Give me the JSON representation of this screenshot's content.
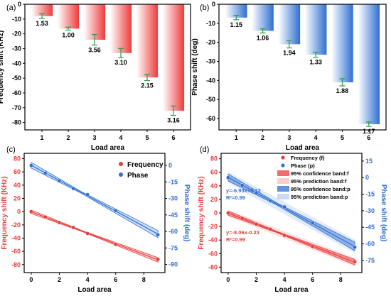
{
  "panels": {
    "a": "(a)",
    "b": "(b)",
    "c": "(c)",
    "d": "(d)"
  },
  "colors": {
    "red": "#e83b3b",
    "blue": "#2f6fd1",
    "green": "#2a9d4a"
  },
  "chart_data": [
    {
      "id": "a",
      "type": "bar",
      "title": "",
      "xlabel": "Load area",
      "ylabel": "Frequency shift (KHz)",
      "categories": [
        "1",
        "2",
        "3",
        "4",
        "5",
        "6"
      ],
      "values": [
        -8,
        -16.5,
        -24,
        -33,
        -49.5,
        -72
      ],
      "errors": [
        1.53,
        1.0,
        3.56,
        3.1,
        2.15,
        3.16
      ],
      "data_labels": [
        "1.53",
        "1.00",
        "3.56",
        "3.10",
        "2.15",
        "3.16"
      ],
      "yticks": [
        0,
        -10,
        -20,
        -30,
        -40,
        -50,
        -60,
        -70,
        -80
      ],
      "ylim": [
        -85,
        0
      ]
    },
    {
      "id": "b",
      "type": "bar",
      "title": "",
      "xlabel": "Load area",
      "ylabel": "Phase shift (deg)",
      "categories": [
        "1",
        "2",
        "3",
        "4",
        "5",
        "6"
      ],
      "values": [
        -7,
        -14,
        -21,
        -26.5,
        -41,
        -63
      ],
      "errors": [
        1.15,
        1.06,
        1.94,
        1.33,
        1.88,
        1.17
      ],
      "data_labels": [
        "1.15",
        "1.06",
        "1.94",
        "1.33",
        "1.88",
        "1.17"
      ],
      "yticks": [
        0,
        -10,
        -20,
        -30,
        -40,
        -50,
        -60
      ],
      "ylim": [
        -66,
        0
      ]
    },
    {
      "id": "c",
      "type": "scatter",
      "title": "",
      "xlabel": "Load area",
      "ylabel_left": "Frequency shift (KHz)",
      "ylabel_right": "Phase shift (deg)",
      "xticks": [
        0,
        2,
        4,
        6,
        8
      ],
      "xlim": [
        -0.5,
        9.5
      ],
      "yticks_left": [
        80,
        60,
        40,
        20,
        0,
        -20,
        -40,
        -60,
        -80
      ],
      "ylim_left": [
        -92,
        88
      ],
      "yticks_right": [
        0,
        -15,
        -30,
        -45,
        -60,
        -75,
        -90
      ],
      "ylim_right": [
        -97.4,
        11.0
      ],
      "legend_position": "top-right",
      "series": [
        {
          "name": "Frequency",
          "axis": "left",
          "x": [
            0,
            1,
            2,
            3,
            4,
            6,
            9
          ],
          "y": [
            0,
            -8,
            -16.5,
            -24,
            -33,
            -49.5,
            -72
          ]
        },
        {
          "name": "Phase",
          "axis": "right",
          "x": [
            0,
            1,
            2,
            3,
            4,
            6,
            9
          ],
          "y": [
            0,
            -7,
            -14,
            -21,
            -26.5,
            -41,
            -63
          ]
        }
      ]
    },
    {
      "id": "d",
      "type": "scatter",
      "title": "",
      "xlabel": "Load area",
      "ylabel_left": "Frequency shift (KHz)",
      "ylabel_right": "Phase shift (deg)",
      "xticks": [
        0,
        2,
        4,
        6,
        8
      ],
      "xlim": [
        -0.5,
        9.5
      ],
      "yticks_left": [
        80,
        60,
        40,
        20,
        0,
        -20,
        -40,
        -60,
        -80
      ],
      "ylim_left": [
        -88,
        88
      ],
      "yticks_right": [
        15,
        0,
        -15,
        -30,
        -45,
        -60,
        -75
      ],
      "ylim_right": [
        -86.0,
        22.0
      ],
      "legend_position": "top-right",
      "legend": [
        "Frequency (f)",
        "Phase (p)",
        "95% confidence band:f",
        "95% prediction band:f",
        "95% confidence band:p",
        "95% prediction band:p"
      ],
      "fits": [
        {
          "label": "y=-6.93x+0.12",
          "r2": "R²=0.99",
          "slope": -6.93,
          "intercept": 0.12,
          "axis": "right"
        },
        {
          "label": "y=-8.06x-0.23",
          "r2": "R²=0.99",
          "slope": -8.06,
          "intercept": -0.23,
          "axis": "left"
        }
      ],
      "series": [
        {
          "name": "Frequency (f)",
          "axis": "left",
          "x": [
            0,
            1,
            2,
            3,
            4,
            6,
            9
          ],
          "y": [
            0,
            -8,
            -16.5,
            -24,
            -33,
            -49.5,
            -72
          ]
        },
        {
          "name": "Phase (p)",
          "axis": "right",
          "x": [
            0,
            1,
            2,
            3,
            4,
            6,
            9
          ],
          "y": [
            0,
            -7,
            -14,
            -21,
            -26.5,
            -41,
            -63
          ]
        }
      ]
    }
  ]
}
